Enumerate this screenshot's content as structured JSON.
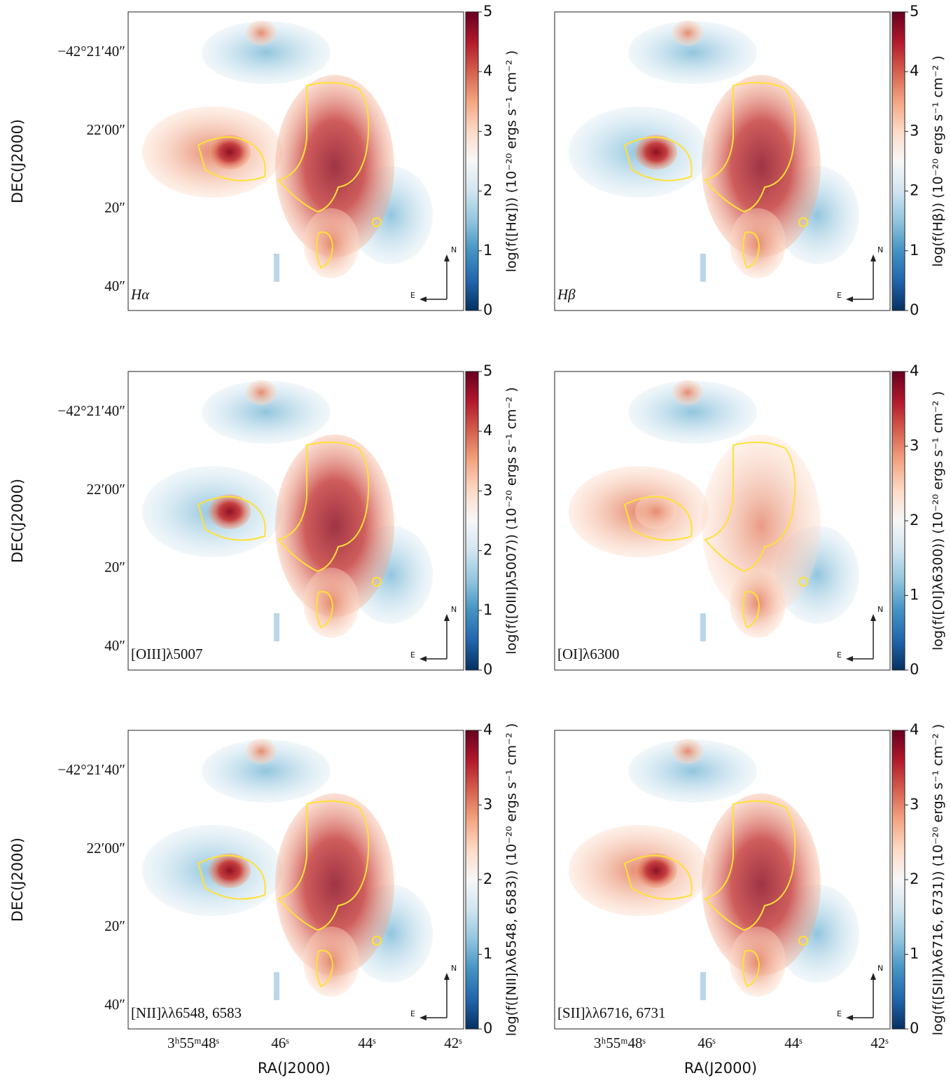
{
  "figure": {
    "dec_label": "DEC(J2000)",
    "ra_label": "RA(J2000)",
    "dec_ticks": [
      "−42°21′40″",
      "22′00″",
      "20″",
      "40″"
    ],
    "ra_ticks": [
      "3ʰ55ᵐ48ˢ",
      "46ˢ",
      "44ˢ",
      "42ˢ"
    ],
    "compass": {
      "north": "N",
      "east": "E"
    },
    "colormap": [
      "#053061",
      "#2166ac",
      "#4393c3",
      "#92c5de",
      "#d1e5f0",
      "#f7f7f7",
      "#fddbc7",
      "#f4a582",
      "#d6604d",
      "#b2182b",
      "#67001f"
    ],
    "contour_color": "#ffe135",
    "panels": [
      {
        "name": "Hα",
        "colorbar_label": "log(f([Hα])) (10⁻²⁰ ergs s⁻¹ cm⁻² )",
        "clim": [
          0,
          5
        ],
        "cticks": [
          0,
          1,
          2,
          3,
          4,
          5
        ]
      },
      {
        "name": "Hβ",
        "colorbar_label": "log(f(Hβ)) (10⁻²⁰ ergs s⁻¹ cm⁻² )",
        "clim": [
          0,
          5
        ],
        "cticks": [
          0,
          1,
          2,
          3,
          4,
          5
        ]
      },
      {
        "name": "[OIII]λ5007",
        "colorbar_label": "log(f([OIII]λ5007)) (10⁻²⁰ ergs s⁻¹ cm⁻² )",
        "clim": [
          0,
          5
        ],
        "cticks": [
          0,
          1,
          2,
          3,
          4,
          5
        ]
      },
      {
        "name": "[OI]λ6300",
        "colorbar_label": "log(f([OI]λ6300)) (10⁻²⁰ ergs s⁻¹ cm⁻² )",
        "clim": [
          0,
          4
        ],
        "cticks": [
          0,
          1,
          2,
          3,
          4
        ]
      },
      {
        "name": "[NII]λλ6548, 6583",
        "colorbar_label": "log(f([NII]λλ6548, 6583)) (10⁻²⁰ ergs s⁻¹ cm⁻² )",
        "clim": [
          0,
          4
        ],
        "cticks": [
          0,
          1,
          2,
          3,
          4
        ]
      },
      {
        "name": "[SII]λλ6716, 6731",
        "colorbar_label": "log(f([SII]λλ6716, 6731)) (10⁻²⁰ ergs s⁻¹ cm⁻² )",
        "clim": [
          0,
          4
        ],
        "cticks": [
          0,
          1,
          2,
          3,
          4
        ]
      }
    ]
  }
}
